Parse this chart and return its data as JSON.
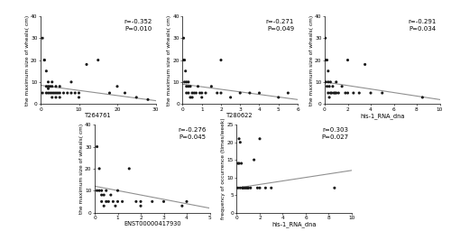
{
  "plots": [
    {
      "xlabel": "T264761",
      "ylabel": "the maximum size of wheals( cm)",
      "r": "-0.352",
      "p": "0.010",
      "xlim": [
        0,
        30
      ],
      "ylim": [
        0,
        40
      ],
      "xticks": [
        0,
        10,
        20,
        30
      ],
      "yticks": [
        0,
        10,
        20,
        30,
        40
      ],
      "scatter_x": [
        0.5,
        0.5,
        1,
        1,
        1.5,
        1.5,
        1.5,
        2,
        2,
        2,
        2,
        2.5,
        2.5,
        3,
        3,
        3,
        3,
        3.5,
        4,
        4,
        4,
        4.5,
        5,
        5,
        5,
        6,
        7,
        8,
        8,
        9,
        10,
        10,
        12,
        15,
        18,
        20,
        22,
        25,
        28
      ],
      "scatter_y": [
        30,
        5,
        20,
        20,
        15,
        8,
        5,
        10,
        8,
        7,
        5,
        8,
        5,
        10,
        8,
        5,
        3,
        5,
        8,
        5,
        3,
        5,
        8,
        5,
        3,
        5,
        5,
        10,
        5,
        5,
        5,
        3,
        18,
        20,
        5,
        8,
        5,
        3,
        2
      ],
      "line_x": [
        0,
        30
      ],
      "line_y": [
        8.5,
        1.5
      ]
    },
    {
      "xlabel": "T280622",
      "ylabel": "the maximum size of wheals( cm)",
      "r": "-0.271",
      "p": "0.049",
      "xlim": [
        0,
        6
      ],
      "ylim": [
        0,
        40
      ],
      "xticks": [
        0,
        1,
        2,
        3,
        4,
        5,
        6
      ],
      "yticks": [
        0,
        10,
        20,
        30,
        40
      ],
      "scatter_x": [
        0.05,
        0.05,
        0.1,
        0.1,
        0.15,
        0.2,
        0.2,
        0.2,
        0.3,
        0.3,
        0.3,
        0.4,
        0.4,
        0.5,
        0.5,
        0.6,
        0.7,
        0.8,
        0.9,
        1.0,
        1.0,
        1.2,
        1.5,
        1.8,
        2.0,
        2.0,
        2.5,
        3.0,
        3.5,
        4.0,
        5.0,
        5.5
      ],
      "scatter_y": [
        30,
        20,
        20,
        10,
        15,
        10,
        8,
        5,
        10,
        8,
        5,
        8,
        3,
        5,
        3,
        5,
        5,
        8,
        5,
        5,
        3,
        5,
        8,
        5,
        20,
        5,
        3,
        5,
        5,
        5,
        3,
        5
      ],
      "line_x": [
        0,
        6
      ],
      "line_y": [
        9,
        2
      ]
    },
    {
      "xlabel": "his-1_RNA_dna",
      "ylabel": "the maximum size of wheals( cm)",
      "r": "-0.291",
      "p": "0.034",
      "xlim": [
        0,
        10
      ],
      "ylim": [
        0,
        40
      ],
      "xticks": [
        0,
        2,
        4,
        6,
        8,
        10
      ],
      "yticks": [
        0,
        10,
        20,
        30,
        40
      ],
      "scatter_x": [
        0.05,
        0.1,
        0.1,
        0.2,
        0.2,
        0.3,
        0.3,
        0.3,
        0.4,
        0.4,
        0.5,
        0.5,
        0.6,
        0.7,
        0.8,
        0.9,
        1.0,
        1.0,
        1.2,
        1.5,
        1.8,
        2.0,
        2.0,
        2.5,
        3.0,
        3.5,
        4.0,
        5.0,
        8.5
      ],
      "scatter_y": [
        30,
        20,
        10,
        20,
        8,
        15,
        10,
        5,
        8,
        3,
        10,
        5,
        5,
        8,
        5,
        5,
        10,
        5,
        5,
        8,
        5,
        20,
        5,
        5,
        5,
        18,
        5,
        5,
        3
      ],
      "line_x": [
        0,
        10
      ],
      "line_y": [
        10,
        2
      ]
    },
    {
      "xlabel": "ENST00000417930",
      "ylabel": "the maximum size of wheals( cm)",
      "r": "-0.276",
      "p": "0.045",
      "xlim": [
        0,
        5
      ],
      "ylim": [
        0,
        40
      ],
      "xticks": [
        0,
        1,
        2,
        3,
        4,
        5
      ],
      "yticks": [
        0,
        10,
        20,
        30,
        40
      ],
      "scatter_x": [
        0.1,
        0.1,
        0.2,
        0.2,
        0.3,
        0.3,
        0.3,
        0.4,
        0.4,
        0.5,
        0.5,
        0.6,
        0.7,
        0.8,
        0.9,
        1.0,
        1.0,
        1.2,
        1.5,
        1.8,
        2.0,
        2.0,
        2.5,
        3.0,
        3.8,
        4.0
      ],
      "scatter_y": [
        30,
        10,
        20,
        10,
        10,
        8,
        5,
        8,
        3,
        10,
        5,
        5,
        8,
        5,
        3,
        10,
        5,
        5,
        20,
        5,
        5,
        3,
        5,
        5,
        3,
        5
      ],
      "line_x": [
        0,
        5
      ],
      "line_y": [
        12,
        2
      ]
    },
    {
      "xlabel": "his-1_RNA_dna",
      "ylabel": "frequency of occurrence (times/week)",
      "r": "0.303",
      "p": "0.027",
      "xlim": [
        0,
        10
      ],
      "ylim": [
        0,
        25
      ],
      "xticks": [
        0,
        2,
        4,
        6,
        8,
        10
      ],
      "yticks": [
        0,
        5,
        10,
        15,
        20,
        25
      ],
      "scatter_x": [
        0.1,
        0.1,
        0.2,
        0.2,
        0.3,
        0.3,
        0.4,
        0.5,
        0.5,
        0.6,
        0.7,
        0.8,
        0.9,
        1.0,
        1.0,
        1.2,
        1.5,
        1.8,
        2.0,
        2.0,
        2.5,
        3.0,
        8.5
      ],
      "scatter_y": [
        14,
        7,
        21,
        14,
        20,
        7,
        14,
        7,
        7,
        7,
        7,
        7,
        7,
        7,
        7,
        7,
        15,
        7,
        21,
        7,
        7,
        7,
        7
      ],
      "line_x": [
        0,
        10
      ],
      "line_y": [
        7,
        12
      ]
    }
  ],
  "dot_color": "#1a1a1a",
  "line_color": "#909090",
  "dot_size": 5,
  "annot_font_size": 5.0,
  "label_font_size": 4.8,
  "tick_font_size": 4.2,
  "ylabel_font_size": 4.2
}
